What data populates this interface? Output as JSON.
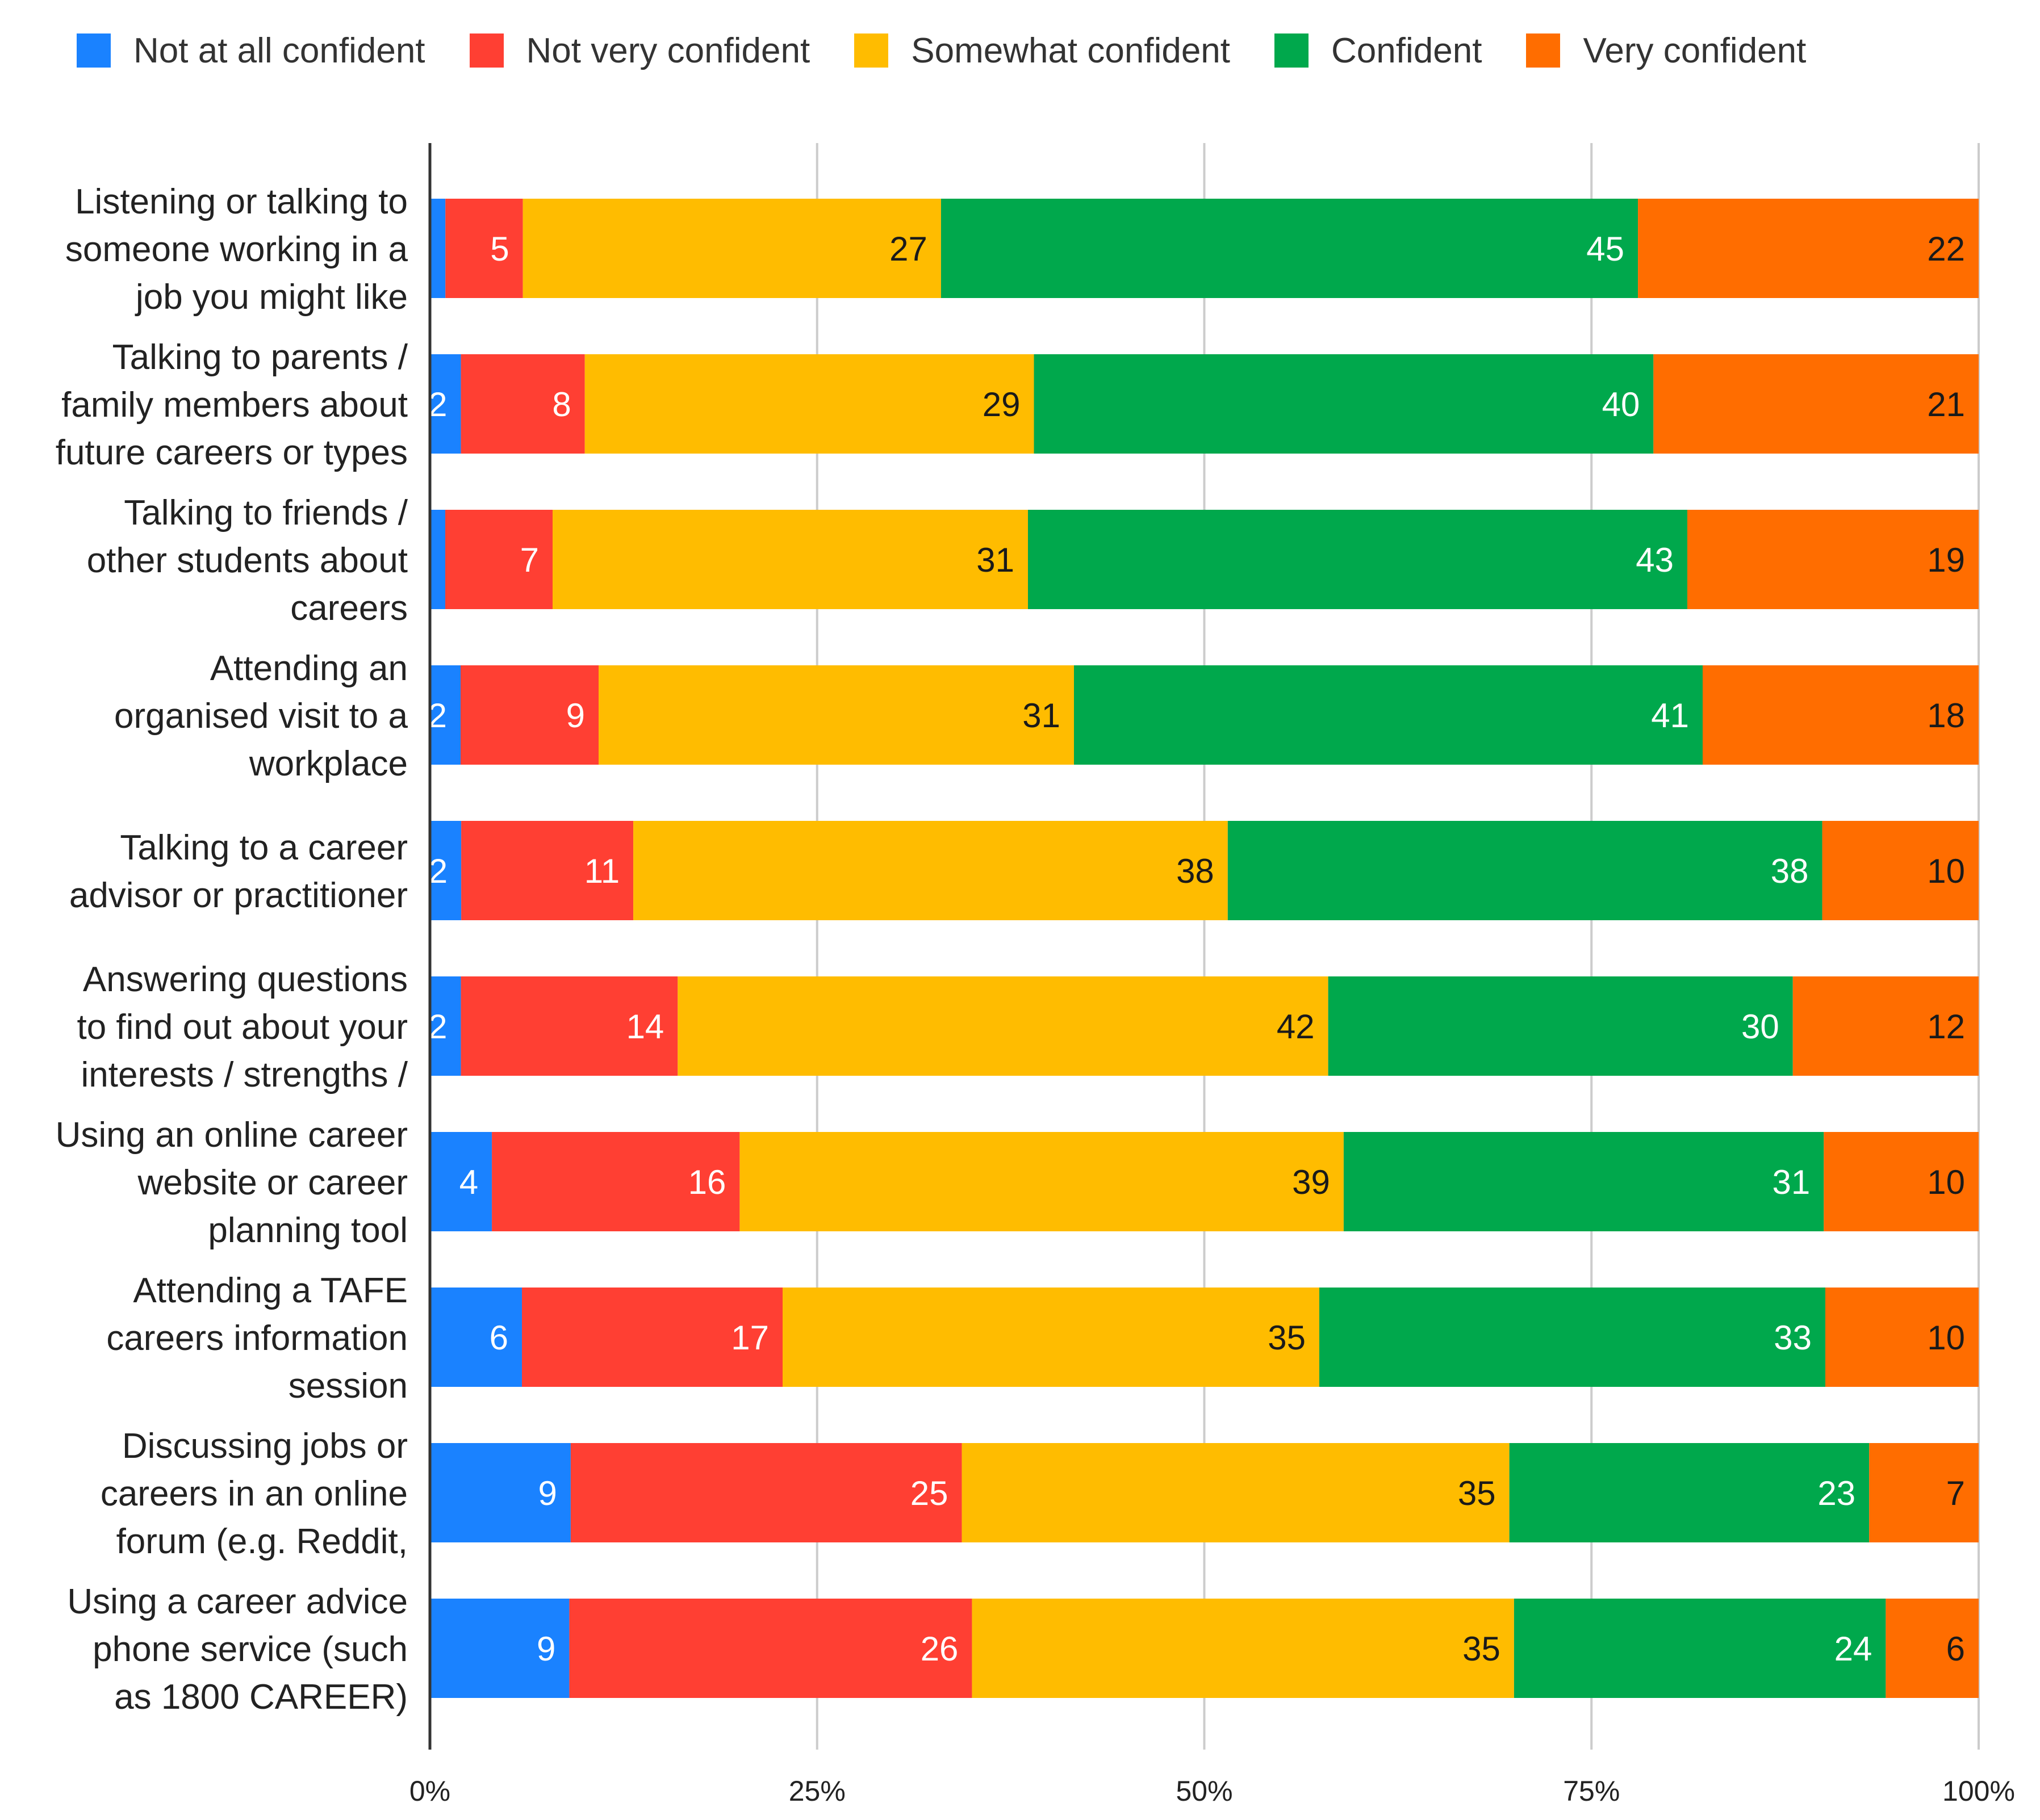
{
  "chart_data": {
    "type": "bar",
    "orientation": "horizontal",
    "stacked": "percent",
    "categories": [
      [
        "Listening or talking to",
        "someone working in a",
        "job you might like"
      ],
      [
        "Talking to parents /",
        "family members about",
        "future careers or types"
      ],
      [
        "Talking to friends /",
        "other students about",
        "careers"
      ],
      [
        "Attending an",
        "organised visit to a",
        "workplace"
      ],
      [
        "Talking to a career",
        "advisor or practitioner"
      ],
      [
        "Answering questions",
        "to find out about your",
        "interests / strengths /"
      ],
      [
        "Using an online career",
        "website or career",
        "planning tool"
      ],
      [
        "Attending a TAFE",
        "careers information",
        "session"
      ],
      [
        "Discussing jobs or",
        "careers in an online",
        "forum (e.g. Reddit,"
      ],
      [
        "Using a career advice",
        "phone service (such",
        "as 1800 CAREER)"
      ]
    ],
    "series": [
      {
        "name": "Not at all confident",
        "color": "#1a82ff",
        "label_color": "#ffffff",
        "values": [
          1,
          2,
          1,
          2,
          2,
          2,
          4,
          6,
          9,
          9
        ]
      },
      {
        "name": "Not very confident",
        "color": "#ff3f33",
        "label_color": "#ffffff",
        "values": [
          5,
          8,
          7,
          9,
          11,
          14,
          16,
          17,
          25,
          26
        ]
      },
      {
        "name": "Somewhat confident",
        "color": "#ffbc00",
        "label_color": "#1a1a1a",
        "values": [
          27,
          29,
          31,
          31,
          38,
          42,
          39,
          35,
          35,
          35
        ]
      },
      {
        "name": "Confident",
        "color": "#00a84c",
        "label_color": "#ffffff",
        "values": [
          45,
          40,
          43,
          41,
          38,
          30,
          31,
          33,
          23,
          24
        ]
      },
      {
        "name": "Very confident",
        "color": "#ff6d00",
        "label_color": "#1a1a1a",
        "values": [
          22,
          21,
          19,
          18,
          10,
          12,
          10,
          10,
          7,
          6
        ]
      }
    ],
    "x_ticks": [
      "0%",
      "25%",
      "50%",
      "75%",
      "100%"
    ],
    "xlim": [
      0,
      100
    ],
    "grid": true,
    "legend": "top",
    "title": "",
    "xlabel": "",
    "ylabel": ""
  }
}
